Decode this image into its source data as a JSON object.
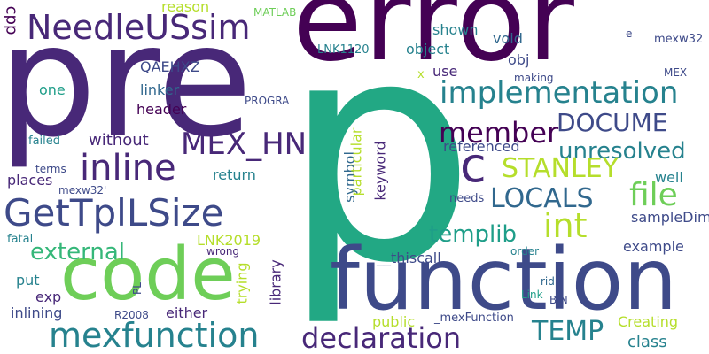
{
  "palette": {
    "dark_purple": "#440154",
    "indigo": "#482878",
    "slate_blue": "#3e4a89",
    "blue": "#31688e",
    "teal": "#26828e",
    "green_teal": "#1f9e89",
    "green": "#35b779",
    "sea_green": "#22a884",
    "lime": "#6ece58",
    "yellow_green": "#b5de2b",
    "background": "#ffffff"
  },
  "words": [
    "error",
    "pre",
    "p",
    "function",
    "code",
    "mexfunction",
    "GetTplLSize",
    "declaration",
    "inline",
    "NeedleUSsim",
    "implementation",
    "c",
    "MEX_HN",
    "member",
    "DOCUME",
    "unresolved",
    "STANLEY",
    "LOCALS",
    "int",
    "file",
    "templib",
    "external",
    "TEMP",
    "cpp",
    "reason",
    "MATLAB",
    "e",
    "mexw32",
    "QAEHXZ",
    "LNK1120",
    "shown",
    "object",
    "void",
    "use",
    "obj",
    "x",
    "making",
    "MEX",
    "one",
    "linker",
    "PROGRA",
    "header",
    "without",
    "failed",
    "return",
    "places",
    "terms",
    "mexw32'",
    "symbol",
    "referenced",
    "particular",
    "keyword",
    "well",
    "needs",
    "sampleDim",
    "LNK2019",
    "example",
    "fatal",
    "wrong",
    "library",
    "trying",
    "put",
    "exp",
    "PL",
    "__thiscall",
    "order",
    "rid",
    "Link",
    "BIN",
    "inlining",
    "R2008",
    "either",
    "public",
    "_mexFunction",
    "Creating",
    "class"
  ]
}
